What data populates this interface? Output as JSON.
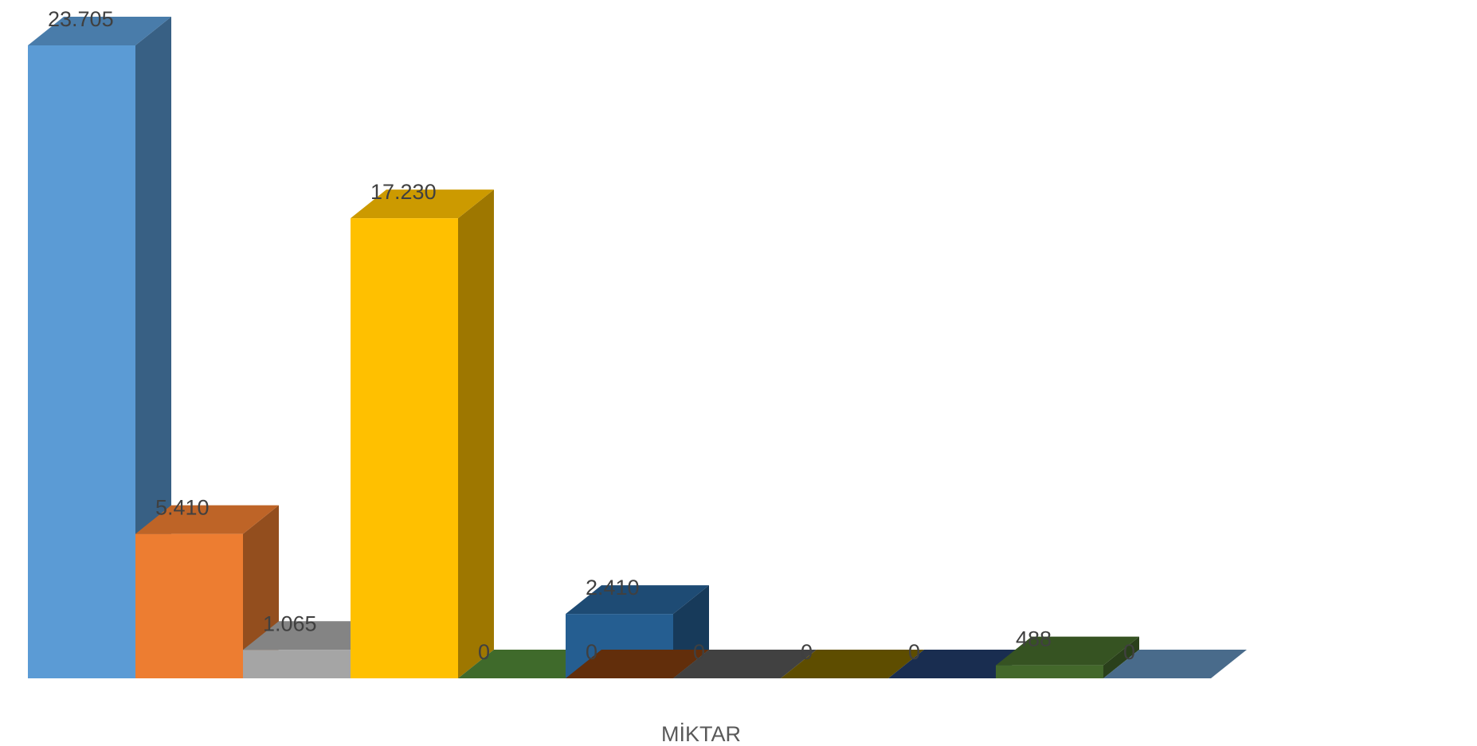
{
  "chart_data": {
    "type": "bar",
    "xlabel": "MİKTAR",
    "categories": [
      "MİKTAR"
    ],
    "series": [
      {
        "value": 23705,
        "label": "23.705",
        "color": "#5B9BD5"
      },
      {
        "value": 5410,
        "label": "5.410",
        "color": "#ED7D31"
      },
      {
        "value": 1065,
        "label": "1.065",
        "color": "#A5A5A5"
      },
      {
        "value": 17230,
        "label": "17.230",
        "color": "#FFC000"
      },
      {
        "value": 0,
        "label": "0",
        "color": "#4F8436"
      },
      {
        "value": 2410,
        "label": "2.410",
        "color": "#255E91"
      },
      {
        "value": 0,
        "label": "0",
        "color": "#7B3A0E"
      },
      {
        "value": 0,
        "label": "0",
        "color": "#515151"
      },
      {
        "value": 0,
        "label": "0",
        "color": "#766000"
      },
      {
        "value": 0,
        "label": "0",
        "color": "#1F3864"
      },
      {
        "value": 488,
        "label": "488",
        "color": "#43682B"
      },
      {
        "value": 0,
        "label": "0",
        "color": "#5B86AE"
      }
    ],
    "ylim": [
      0,
      23705
    ],
    "grid": false,
    "legend": "none"
  }
}
